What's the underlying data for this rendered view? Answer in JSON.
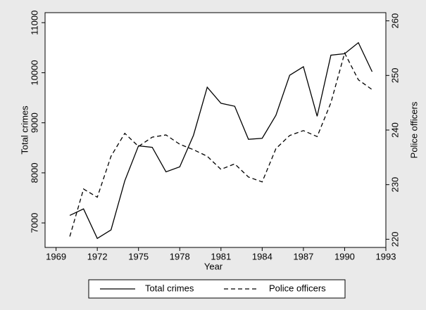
{
  "chart_data": {
    "type": "line",
    "x_label": "Year",
    "y_label": "Total crimes",
    "y2_label": "Police officers",
    "x": [
      1970,
      1971,
      1972,
      1973,
      1974,
      1975,
      1976,
      1977,
      1978,
      1979,
      1980,
      1981,
      1982,
      1983,
      1984,
      1985,
      1986,
      1987,
      1988,
      1989,
      1990,
      1991,
      1992
    ],
    "series": [
      {
        "name": "Total crimes",
        "color": "#000000",
        "dash": "solid",
        "values": [
          7150,
          7280,
          6690,
          6860,
          7840,
          8540,
          8510,
          8020,
          8120,
          8750,
          9710,
          9390,
          9330,
          8670,
          8690,
          9150,
          9950,
          10120,
          9130,
          10350,
          10380,
          10600,
          10020
        ]
      },
      {
        "name": "Police officers",
        "color": "#000000",
        "dash": "dashed",
        "axis": "y2",
        "values": [
          220.5,
          229.2,
          227.7,
          235.2,
          239.4,
          237.0,
          238.7,
          239.1,
          237.4,
          236.4,
          235.2,
          232.8,
          233.8,
          231.4,
          230.5,
          236.6,
          239.0,
          239.9,
          238.8,
          245.0,
          254.1,
          249.2,
          247.4
        ]
      }
    ],
    "xlim": [
      1968.2,
      1993
    ],
    "xticks": [
      1969,
      1972,
      1975,
      1978,
      1981,
      1984,
      1987,
      1990,
      1993
    ],
    "ylim": [
      6510,
      11200
    ],
    "yticks": [
      7000,
      8000,
      9000,
      10000,
      11000
    ],
    "y2lim": [
      218.5,
      261.5
    ],
    "y2ticks": [
      220,
      230,
      240,
      250,
      260
    ],
    "legend": "bottom"
  }
}
